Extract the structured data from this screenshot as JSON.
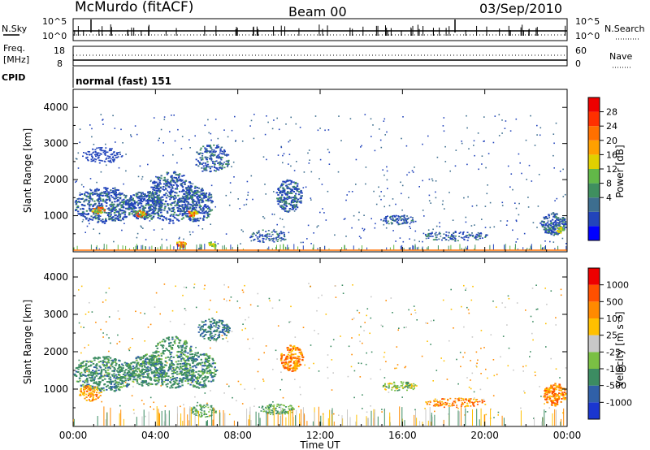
{
  "header": {
    "station": "McMurdo (fitACF)",
    "beam": "Beam 00",
    "date": "03/Sep/2010"
  },
  "panels": {
    "noise": {
      "left_label": "N.Sky",
      "right_label": "N.Search",
      "left_ticks": [
        "10^5",
        "10^0"
      ],
      "right_ticks": [
        "10^5",
        "10^0"
      ]
    },
    "freq": {
      "left_label_line1": "Freq.",
      "left_label_line2": "[MHz]",
      "left_ticks": [
        "18",
        "8"
      ],
      "right_label": "Nave",
      "right_ticks": [
        "60",
        "0"
      ]
    },
    "cpid": {
      "label": "CPID",
      "mode_text": "normal (fast) 151"
    }
  },
  "chart_data": [
    {
      "type": "heatmap",
      "name": "power",
      "ylabel": "Slant Range [km]",
      "xlabel": "",
      "y_ticks": [
        "4000",
        "3000",
        "2000",
        "1000"
      ],
      "colorbar": {
        "label": "Power [dB]",
        "ticks": [
          "28",
          "24",
          "20",
          "16",
          "12",
          "8",
          "4"
        ],
        "colors": [
          "#0000ff",
          "#2244bb",
          "#3d6e8f",
          "#3f8f5f",
          "#62b848",
          "#e0d000",
          "#ffa000",
          "#ff7000",
          "#ff3000",
          "#ee0000"
        ]
      }
    },
    {
      "type": "heatmap",
      "name": "velocity",
      "ylabel": "Slant Range [km]",
      "xlabel": "Time UT",
      "y_ticks": [
        "4000",
        "3000",
        "2000",
        "1000"
      ],
      "colorbar": {
        "label": "Velocity [m s⁻¹]",
        "ticks": [
          "1000",
          "500",
          "100",
          "25",
          "-25",
          "-100",
          "-500",
          "-1000"
        ],
        "colors": [
          "#1a36d0",
          "#3060a8",
          "#3c8c62",
          "#7ac044",
          "#c8c8c8",
          "#ffc000",
          "#ff8a00",
          "#ff5000",
          "#ee0000"
        ]
      }
    }
  ],
  "time_axis": {
    "label": "Time UT",
    "ticks": [
      "00:00",
      "04:00",
      "08:00",
      "12:00",
      "16:00",
      "20:00",
      "00:00"
    ]
  }
}
